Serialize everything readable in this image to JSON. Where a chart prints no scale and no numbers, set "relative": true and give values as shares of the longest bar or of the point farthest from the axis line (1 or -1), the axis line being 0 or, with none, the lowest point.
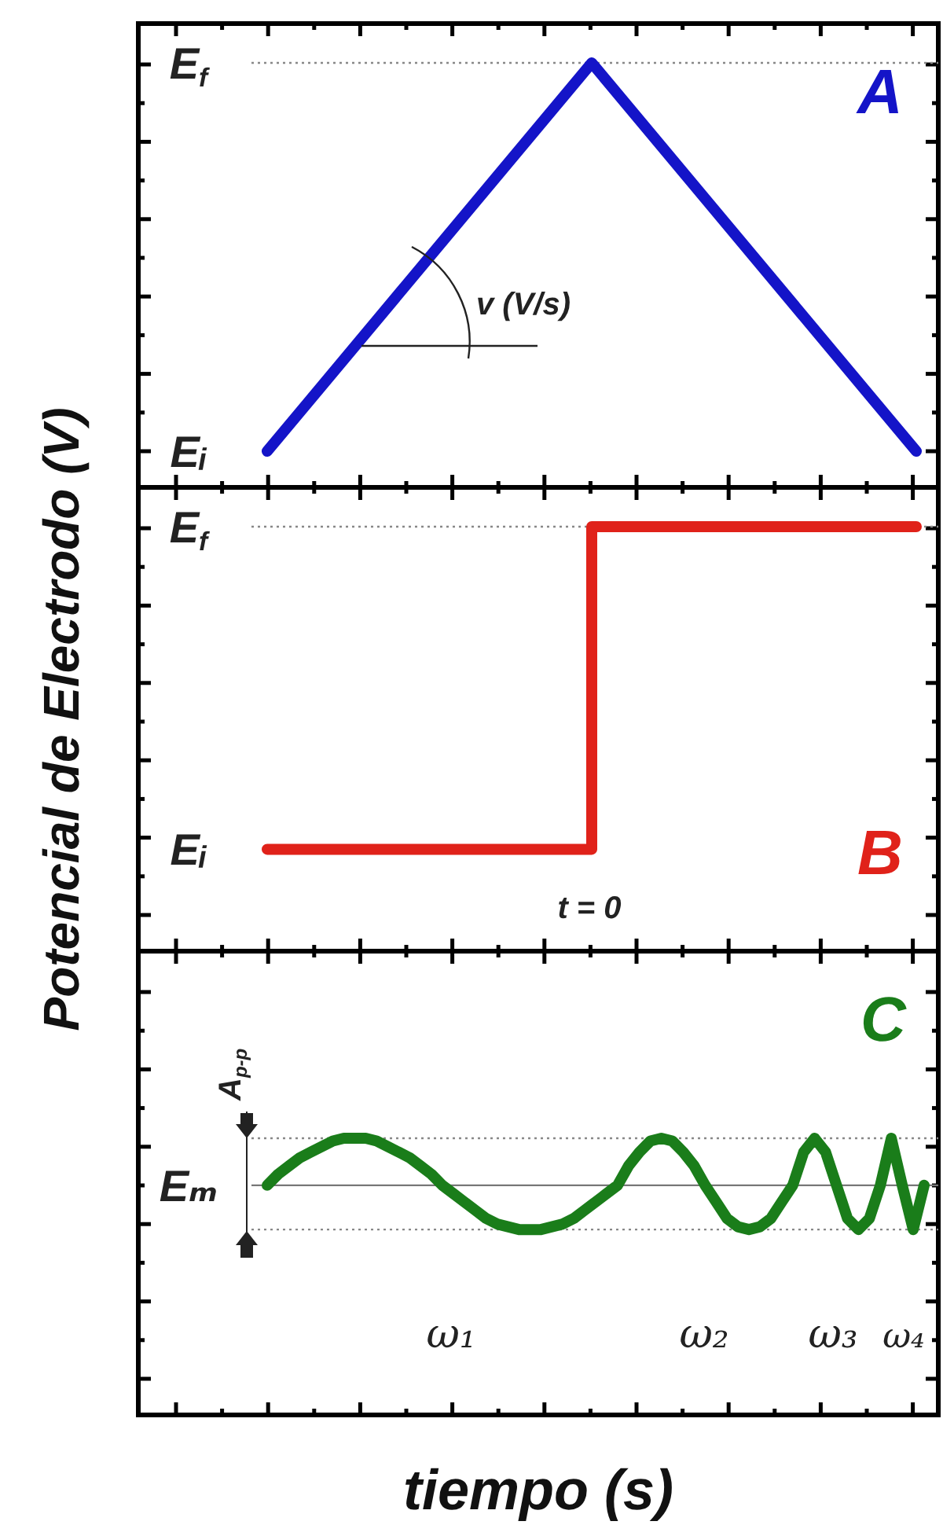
{
  "chart_data": [
    {
      "type": "line",
      "title": "A",
      "relative": true,
      "categories": [
        null,
        null,
        null
      ],
      "series": [
        {
          "color": "#1414c8",
          "values": [
            0.085,
            1,
            0.085
          ]
        }
      ],
      "ref_lines": [
        {
          "axis": "y",
          "value": 1,
          "label": "E$_{f}$",
          "line_style": "dotted",
          "color": "#888888"
        }
      ],
      "annotations": [
        "Eᵢ",
        "v (V/s)"
      ]
    },
    {
      "type": "step",
      "title": "B",
      "relative": true,
      "ylabel": "Potencial de Electrodo (V)",
      "categories": [
        null,
        null,
        null
      ],
      "series": [
        {
          "color": "#e0221a",
          "values": [
            0.24,
            1,
            1
          ]
        }
      ],
      "ref_lines": [
        {
          "axis": "y",
          "value": 1,
          "label": "E$_{f}$",
          "line_style": "dotted",
          "color": "#888888"
        }
      ],
      "annotations": [
        "Eᵢ",
        "t = 0"
      ]
    },
    {
      "type": "line",
      "title": "C",
      "relative": true,
      "xlabel": "tiempo (s)",
      "categories": [
        null,
        null,
        null,
        null,
        null,
        null,
        null,
        null,
        null,
        null,
        null,
        null,
        null,
        null,
        null,
        null,
        null,
        null,
        null,
        null,
        null,
        null,
        null,
        null,
        null,
        null,
        null,
        null,
        null,
        null,
        null,
        null,
        null,
        null,
        null,
        null,
        null,
        null,
        null,
        null,
        null,
        null,
        null,
        null,
        null,
        null,
        null,
        null,
        null,
        null,
        null,
        null,
        null,
        null,
        null,
        null,
        null,
        null,
        null,
        null,
        null
      ],
      "series": [
        {
          "color": "#1a7d1a",
          "values": [
            0.83,
            0.87,
            0.9,
            0.93,
            0.95,
            0.97,
            0.99,
            1,
            1,
            1,
            0.99,
            0.97,
            0.95,
            0.93,
            0.9,
            0.87,
            0.83,
            0.8,
            0.77,
            0.74,
            0.71,
            0.69,
            0.68,
            0.67,
            0.67,
            0.67,
            0.68,
            0.69,
            0.71,
            0.74,
            0.77,
            0.8,
            0.83,
            0.9,
            0.95,
            0.99,
            1,
            0.99,
            0.95,
            0.9,
            0.83,
            0.77,
            0.71,
            0.68,
            0.67,
            0.68,
            0.71,
            0.77,
            0.83,
            0.95,
            1,
            0.95,
            0.83,
            0.71,
            0.67,
            0.71,
            0.83,
            1,
            0.83,
            0.67,
            0.83
          ]
        }
      ],
      "ref_lines": [
        {
          "axis": "y",
          "value": 0.83,
          "label": "Eₘ",
          "line_style": "solid",
          "color": "#777777"
        },
        {
          "axis": "y",
          "value": 1,
          "line_style": "dotted",
          "color": "#888888"
        },
        {
          "axis": "y",
          "value": 0.67,
          "line_style": "dotted",
          "color": "#888888"
        }
      ],
      "annotations": [
        "A$_{p-p}$",
        "ω₁",
        "ω₂",
        "ω₃",
        "ω₄"
      ]
    }
  ]
}
